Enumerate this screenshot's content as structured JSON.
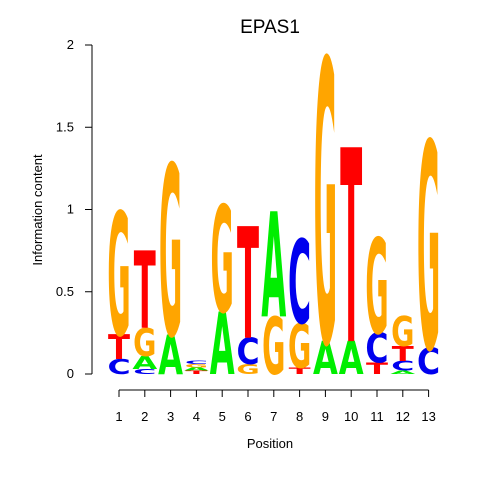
{
  "chart_data": {
    "type": "sequence-logo",
    "title": "EPAS1",
    "xlabel": "Position",
    "ylabel": "Information content",
    "ylim": [
      0,
      2
    ],
    "yticks": [
      "0",
      "0.5",
      "1",
      "1.5",
      "2"
    ],
    "positions": [
      "1",
      "2",
      "3",
      "4",
      "5",
      "6",
      "7",
      "8",
      "9",
      "10",
      "11",
      "12",
      "13"
    ],
    "colors": {
      "A": "#00ee00",
      "C": "#0000ee",
      "G": "#ffa500",
      "T": "#ff0000"
    },
    "stacks": [
      [
        {
          "l": "C",
          "h": 0.09
        },
        {
          "l": "T",
          "h": 0.15
        },
        {
          "l": "G",
          "h": 0.75
        }
      ],
      [
        {
          "l": "C",
          "h": 0.03
        },
        {
          "l": "A",
          "h": 0.08
        },
        {
          "l": "G",
          "h": 0.17
        },
        {
          "l": "T",
          "h": 0.47
        }
      ],
      [
        {
          "l": "A",
          "h": 0.24
        },
        {
          "l": "G",
          "h": 1.04
        }
      ],
      [
        {
          "l": "T",
          "h": 0.02
        },
        {
          "l": "A",
          "h": 0.02
        },
        {
          "l": "G",
          "h": 0.02
        },
        {
          "l": "C",
          "h": 0.02
        }
      ],
      [
        {
          "l": "A",
          "h": 0.38
        },
        {
          "l": "G",
          "h": 0.65
        }
      ],
      [
        {
          "l": "G",
          "h": 0.06
        },
        {
          "l": "C",
          "h": 0.16
        },
        {
          "l": "T",
          "h": 0.68
        }
      ],
      [
        {
          "l": "G",
          "h": 0.35
        },
        {
          "l": "A",
          "h": 0.64
        }
      ],
      [
        {
          "l": "T",
          "h": 0.04
        },
        {
          "l": "G",
          "h": 0.27
        },
        {
          "l": "C",
          "h": 0.51
        }
      ],
      [
        {
          "l": "A",
          "h": 0.2
        },
        {
          "l": "G",
          "h": 1.72
        }
      ],
      [
        {
          "l": "A",
          "h": 0.2
        },
        {
          "l": "T",
          "h": 1.18
        }
      ],
      [
        {
          "l": "T",
          "h": 0.07
        },
        {
          "l": "C",
          "h": 0.18
        },
        {
          "l": "G",
          "h": 0.58
        }
      ],
      [
        {
          "l": "A",
          "h": 0.02
        },
        {
          "l": "C",
          "h": 0.06
        },
        {
          "l": "T",
          "h": 0.09
        },
        {
          "l": "G",
          "h": 0.18
        }
      ],
      [
        {
          "l": "C",
          "h": 0.16
        },
        {
          "l": "G",
          "h": 1.26
        }
      ]
    ]
  }
}
